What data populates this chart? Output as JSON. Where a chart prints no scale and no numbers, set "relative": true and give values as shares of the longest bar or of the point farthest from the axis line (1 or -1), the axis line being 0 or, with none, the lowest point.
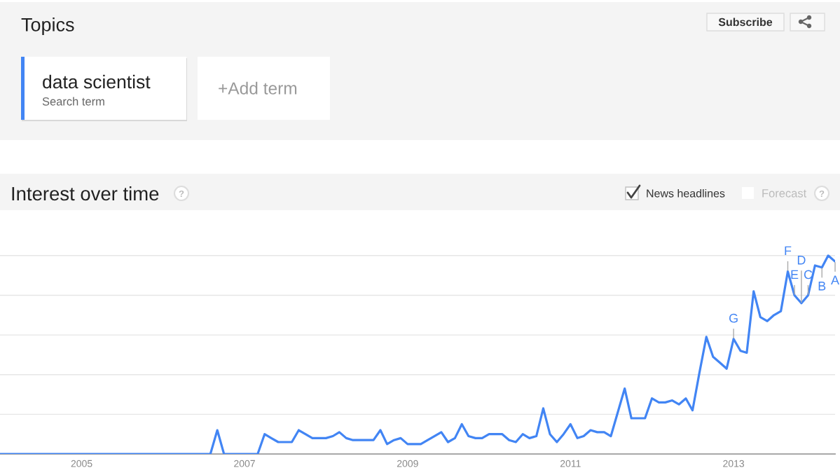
{
  "chart_data": {
    "type": "line",
    "title": "Interest over time",
    "x": [
      "2004-01",
      "2004-02",
      "2004-03",
      "2004-04",
      "2004-05",
      "2004-06",
      "2004-07",
      "2004-08",
      "2004-09",
      "2004-10",
      "2004-11",
      "2004-12",
      "2005-01",
      "2005-02",
      "2005-03",
      "2005-04",
      "2005-05",
      "2005-06",
      "2005-07",
      "2005-08",
      "2005-09",
      "2005-10",
      "2005-11",
      "2005-12",
      "2006-01",
      "2006-02",
      "2006-03",
      "2006-04",
      "2006-05",
      "2006-06",
      "2006-07",
      "2006-08",
      "2006-09",
      "2006-10",
      "2006-11",
      "2006-12",
      "2007-01",
      "2007-02",
      "2007-03",
      "2007-04",
      "2007-05",
      "2007-06",
      "2007-07",
      "2007-08",
      "2007-09",
      "2007-10",
      "2007-11",
      "2007-12",
      "2008-01",
      "2008-02",
      "2008-03",
      "2008-04",
      "2008-05",
      "2008-06",
      "2008-07",
      "2008-08",
      "2008-09",
      "2008-10",
      "2008-11",
      "2008-12",
      "2009-01",
      "2009-02",
      "2009-03",
      "2009-04",
      "2009-05",
      "2009-06",
      "2009-07",
      "2009-08",
      "2009-09",
      "2009-10",
      "2009-11",
      "2009-12",
      "2010-01",
      "2010-02",
      "2010-03",
      "2010-04",
      "2010-05",
      "2010-06",
      "2010-07",
      "2010-08",
      "2010-09",
      "2010-10",
      "2010-11",
      "2010-12",
      "2011-01",
      "2011-02",
      "2011-03",
      "2011-04",
      "2011-05",
      "2011-06",
      "2011-07",
      "2011-08",
      "2011-09",
      "2011-10",
      "2011-11",
      "2011-12",
      "2012-01",
      "2012-02",
      "2012-03",
      "2012-04",
      "2012-05",
      "2012-06",
      "2012-07",
      "2012-08",
      "2012-09",
      "2012-10",
      "2012-11",
      "2012-12",
      "2013-01",
      "2013-02",
      "2013-03",
      "2013-04",
      "2013-05",
      "2013-06",
      "2013-07",
      "2013-08",
      "2013-09",
      "2013-10",
      "2013-11",
      "2013-12",
      "2014-01",
      "2014-02",
      "2014-03",
      "2014-04"
    ],
    "series": [
      {
        "name": "data scientist",
        "color": "#4285f4",
        "values": [
          0,
          0,
          0,
          0,
          0,
          0,
          0,
          0,
          0,
          0,
          0,
          0,
          0,
          0,
          0,
          0,
          0,
          0,
          0,
          0,
          0,
          0,
          0,
          0,
          0,
          0,
          0,
          0,
          0,
          0,
          0,
          0,
          0.12,
          0,
          0,
          0,
          0,
          0,
          0,
          0.1,
          0.08,
          0.06,
          0.06,
          0.06,
          0.12,
          0.1,
          0.08,
          0.08,
          0.08,
          0.09,
          0.11,
          0.08,
          0.07,
          0.07,
          0.07,
          0.07,
          0.12,
          0.05,
          0.07,
          0.08,
          0.05,
          0.05,
          0.05,
          0.07,
          0.09,
          0.11,
          0.06,
          0.08,
          0.15,
          0.09,
          0.08,
          0.08,
          0.1,
          0.1,
          0.1,
          0.07,
          0.06,
          0.1,
          0.08,
          0.09,
          0.23,
          0.1,
          0.06,
          0.1,
          0.15,
          0.08,
          0.09,
          0.12,
          0.11,
          0.11,
          0.09,
          0.21,
          0.33,
          0.18,
          0.18,
          0.18,
          0.28,
          0.26,
          0.26,
          0.27,
          0.25,
          0.28,
          0.22,
          0.41,
          0.59,
          0.49,
          0.46,
          0.43,
          0.58,
          0.52,
          0.51,
          0.82,
          0.69,
          0.67,
          0.7,
          0.72,
          0.92,
          0.8,
          0.76,
          0.8,
          0.95,
          0.94,
          1.0,
          0.97
        ]
      }
    ],
    "relative": true,
    "xlim": [
      "2004-01",
      "2014-04"
    ],
    "xticks": [
      "2005",
      "2007",
      "2009",
      "2011",
      "2013"
    ],
    "grid": "y",
    "legend": "top left",
    "annotations": [
      "Topics",
      "Search term",
      "+Add term",
      "Subscribe",
      "?",
      "News headlines",
      "Forecast",
      "?",
      {
        "text": "G",
        "x": "2013-01",
        "y": 0.58
      },
      {
        "text": "F",
        "x": "2013-09",
        "y": 0.92
      },
      {
        "text": "E",
        "x": "2013-10",
        "y": 0.8
      },
      {
        "text": "D",
        "x": "2013-11",
        "y": 0.76
      },
      {
        "text": "C",
        "x": "2013-12",
        "y": 0.8
      },
      {
        "text": "B",
        "x": "2014-02",
        "y": 0.94
      },
      {
        "text": "A",
        "x": "2014-04",
        "y": 0.97
      }
    ]
  }
}
